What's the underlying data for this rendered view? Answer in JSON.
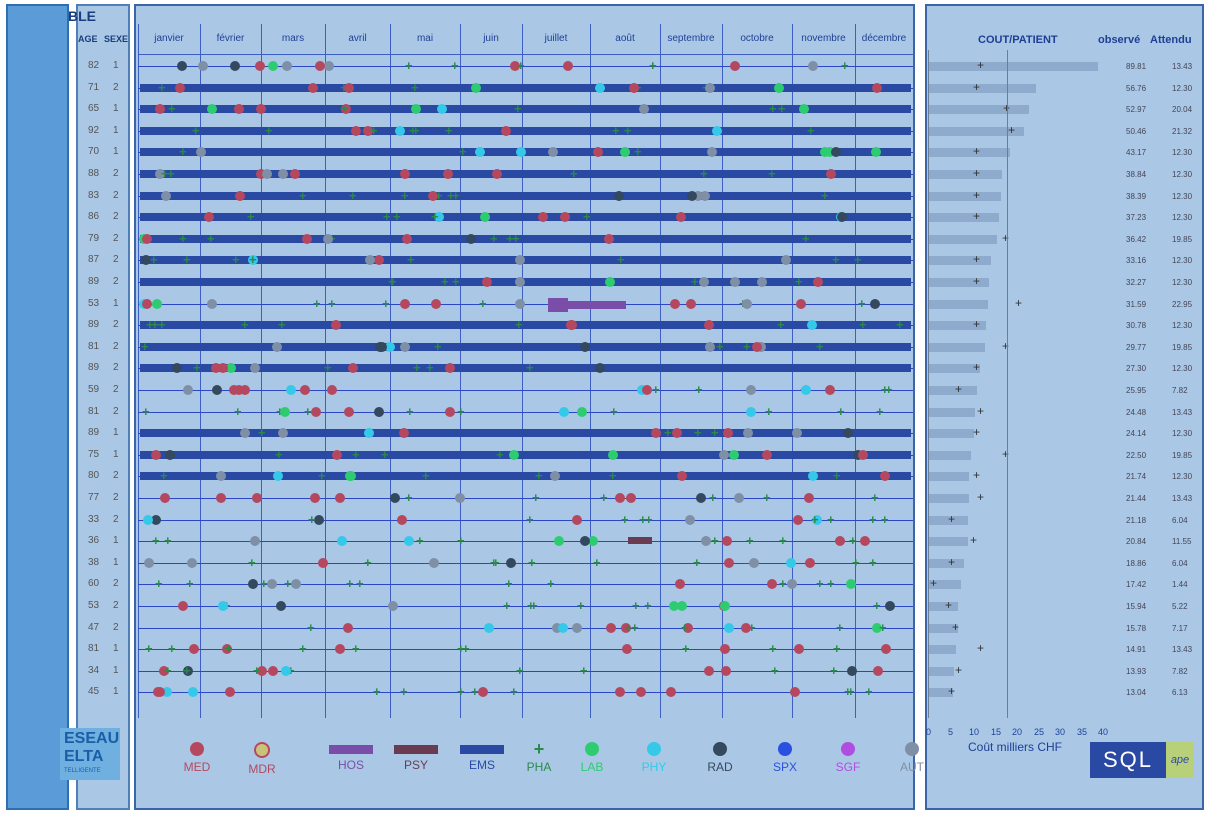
{
  "header": {
    "brand": "BLE",
    "age_label": "AGE",
    "sex_label": "SEXE"
  },
  "months": [
    "janvier",
    "février",
    "mars",
    "avril",
    "mai",
    "juin",
    "juillet",
    "août",
    "septembre",
    "octobre",
    "novembre",
    "décembre"
  ],
  "cost": {
    "title": "COUT/PATIENT",
    "observed_label": "observé",
    "expected_label": "Attendu",
    "axis_label": "Coût milliers CHF",
    "ticks": [
      "0",
      "5",
      "10",
      "15",
      "20",
      "25",
      "30",
      "35",
      "40"
    ]
  },
  "patients": [
    {
      "age": "82",
      "sex": "1",
      "obs": "89.81",
      "att": "13.43",
      "obs_n": 89.81,
      "att_n": 13.43,
      "ems": false
    },
    {
      "age": "71",
      "sex": "2",
      "obs": "56.76",
      "att": "12.30",
      "obs_n": 56.76,
      "att_n": 12.3,
      "ems": true
    },
    {
      "age": "65",
      "sex": "1",
      "obs": "52.97",
      "att": "20.04",
      "obs_n": 52.97,
      "att_n": 20.04,
      "ems": true
    },
    {
      "age": "92",
      "sex": "1",
      "obs": "50.46",
      "att": "21.32",
      "obs_n": 50.46,
      "att_n": 21.32,
      "ems": true
    },
    {
      "age": "70",
      "sex": "1",
      "obs": "43.17",
      "att": "12.30",
      "obs_n": 43.17,
      "att_n": 12.3,
      "ems": true
    },
    {
      "age": "88",
      "sex": "2",
      "obs": "38.84",
      "att": "12.30",
      "obs_n": 38.84,
      "att_n": 12.3,
      "ems": true
    },
    {
      "age": "83",
      "sex": "2",
      "obs": "38.39",
      "att": "12.30",
      "obs_n": 38.39,
      "att_n": 12.3,
      "ems": true
    },
    {
      "age": "86",
      "sex": "2",
      "obs": "37.23",
      "att": "12.30",
      "obs_n": 37.23,
      "att_n": 12.3,
      "ems": true
    },
    {
      "age": "79",
      "sex": "2",
      "obs": "36.42",
      "att": "19.85",
      "obs_n": 36.42,
      "att_n": 19.85,
      "ems": true
    },
    {
      "age": "87",
      "sex": "2",
      "obs": "33.16",
      "att": "12.30",
      "obs_n": 33.16,
      "att_n": 12.3,
      "ems": true
    },
    {
      "age": "89",
      "sex": "2",
      "obs": "32.27",
      "att": "12.30",
      "obs_n": 32.27,
      "att_n": 12.3,
      "ems": true
    },
    {
      "age": "53",
      "sex": "1",
      "obs": "31.59",
      "att": "22.95",
      "obs_n": 31.59,
      "att_n": 22.95,
      "ems": false
    },
    {
      "age": "89",
      "sex": "2",
      "obs": "30.78",
      "att": "12.30",
      "obs_n": 30.78,
      "att_n": 12.3,
      "ems": true
    },
    {
      "age": "81",
      "sex": "2",
      "obs": "29.77",
      "att": "19.85",
      "obs_n": 29.77,
      "att_n": 19.85,
      "ems": true
    },
    {
      "age": "89",
      "sex": "2",
      "obs": "27.30",
      "att": "12.30",
      "obs_n": 27.3,
      "att_n": 12.3,
      "ems": true
    },
    {
      "age": "59",
      "sex": "2",
      "obs": "25.95",
      "att": "7.82",
      "obs_n": 25.95,
      "att_n": 7.82,
      "ems": false
    },
    {
      "age": "81",
      "sex": "2",
      "obs": "24.48",
      "att": "13.43",
      "obs_n": 24.48,
      "att_n": 13.43,
      "ems": false
    },
    {
      "age": "89",
      "sex": "1",
      "obs": "24.14",
      "att": "12.30",
      "obs_n": 24.14,
      "att_n": 12.3,
      "ems": true
    },
    {
      "age": "75",
      "sex": "1",
      "obs": "22.50",
      "att": "19.85",
      "obs_n": 22.5,
      "att_n": 19.85,
      "ems": true
    },
    {
      "age": "80",
      "sex": "2",
      "obs": "21.74",
      "att": "12.30",
      "obs_n": 21.74,
      "att_n": 12.3,
      "ems": true
    },
    {
      "age": "77",
      "sex": "2",
      "obs": "21.44",
      "att": "13.43",
      "obs_n": 21.44,
      "att_n": 13.43,
      "ems": false
    },
    {
      "age": "33",
      "sex": "2",
      "obs": "21.18",
      "att": "6.04",
      "obs_n": 21.18,
      "att_n": 6.04,
      "ems": false
    },
    {
      "age": "36",
      "sex": "1",
      "obs": "20.84",
      "att": "11.55",
      "obs_n": 20.84,
      "att_n": 11.55,
      "ems": false
    },
    {
      "age": "38",
      "sex": "1",
      "obs": "18.86",
      "att": "6.04",
      "obs_n": 18.86,
      "att_n": 6.04,
      "ems": false
    },
    {
      "age": "60",
      "sex": "2",
      "obs": "17.42",
      "att": "1.44",
      "obs_n": 17.42,
      "att_n": 1.44,
      "ems": false
    },
    {
      "age": "53",
      "sex": "2",
      "obs": "15.94",
      "att": "5.22",
      "obs_n": 15.94,
      "att_n": 5.22,
      "ems": false
    },
    {
      "age": "47",
      "sex": "2",
      "obs": "15.78",
      "att": "7.17",
      "obs_n": 15.78,
      "att_n": 7.17,
      "ems": false
    },
    {
      "age": "81",
      "sex": "1",
      "obs": "14.91",
      "att": "13.43",
      "obs_n": 14.91,
      "att_n": 13.43,
      "ems": false
    },
    {
      "age": "34",
      "sex": "1",
      "obs": "13.93",
      "att": "7.82",
      "obs_n": 13.93,
      "att_n": 7.82,
      "ems": false
    },
    {
      "age": "45",
      "sex": "1",
      "obs": "13.04",
      "att": "6.13",
      "obs_n": 13.04,
      "att_n": 6.13,
      "ems": false
    }
  ],
  "legend": [
    {
      "code": "MED",
      "shape": "dot",
      "color": "#b5485f",
      "text_color": "#b5485f"
    },
    {
      "code": "MDR",
      "shape": "ring",
      "color": "#c9c27a",
      "text_color": "#b5485f"
    },
    {
      "code": "HOS",
      "shape": "bar",
      "color": "#7a4ea8",
      "text_color": "#7a4ea8"
    },
    {
      "code": "PSY",
      "shape": "bar",
      "color": "#6b3b52",
      "text_color": "#6b3b52"
    },
    {
      "code": "EMS",
      "shape": "bar",
      "color": "#2a49a2",
      "text_color": "#2a49a2"
    },
    {
      "code": "PHA",
      "shape": "plus",
      "color": "#2a8a4a",
      "text_color": "#2a8a4a"
    },
    {
      "code": "LAB",
      "shape": "dot",
      "color": "#2ecc71",
      "text_color": "#2ecc71"
    },
    {
      "code": "PHY",
      "shape": "dot",
      "color": "#34c9e8",
      "text_color": "#34c9e8"
    },
    {
      "code": "RAD",
      "shape": "dot",
      "color": "#34495e",
      "text_color": "#34495e"
    },
    {
      "code": "SPX",
      "shape": "dot",
      "color": "#2b50e0",
      "text_color": "#2b50e0"
    },
    {
      "code": "SGF",
      "shape": "dot",
      "color": "#b04ee0",
      "text_color": "#b04ee0"
    },
    {
      "code": "AUT",
      "shape": "dot",
      "color": "#7f8fa6",
      "text_color": "#7f8fa6"
    }
  ],
  "logos": {
    "reseau_line1": "ESEAU",
    "reseau_line2": "ELTA",
    "reseau_line3": "TELLIGENTE",
    "sql_main": "SQL",
    "sql_side": "ape"
  },
  "colors": {
    "panel_bg": "#aac8e6",
    "panel_border": "#3a65a6",
    "ems": "#2a49a2",
    "grid": "#3d5ec4",
    "pha": "#2a8a4a",
    "med": "#b5485f",
    "aut": "#7f8fa6"
  }
}
